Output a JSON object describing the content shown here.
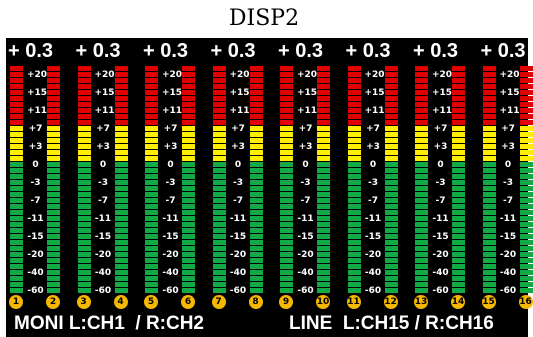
{
  "title": "DISP2",
  "peak_values": [
    "+ 0.3",
    "+ 0.3",
    "+ 0.3",
    "+ 0.3",
    "+ 0.3",
    "+ 0.3",
    "+ 0.3",
    "+ 0.3"
  ],
  "scale_marks": [
    "+20",
    "+15",
    "+11",
    "+7",
    "+3",
    "0",
    "-3",
    "-7",
    "-11",
    "-15",
    "-20",
    "-40",
    "-60"
  ],
  "channel_numbers": [
    "1",
    "2",
    "3",
    "4",
    "5",
    "6",
    "7",
    "8",
    "9",
    "10",
    "11",
    "12",
    "13",
    "14",
    "15",
    "16"
  ],
  "footer": {
    "moni": "MONI L:CH1  / R:CH2",
    "line": "LINE  L:CH15 / R:CH16"
  },
  "colors": {
    "high": "#e00000",
    "mid": "#ffee00",
    "low": "#11aa44",
    "badge": "#f5b800",
    "screen": "#000000"
  }
}
